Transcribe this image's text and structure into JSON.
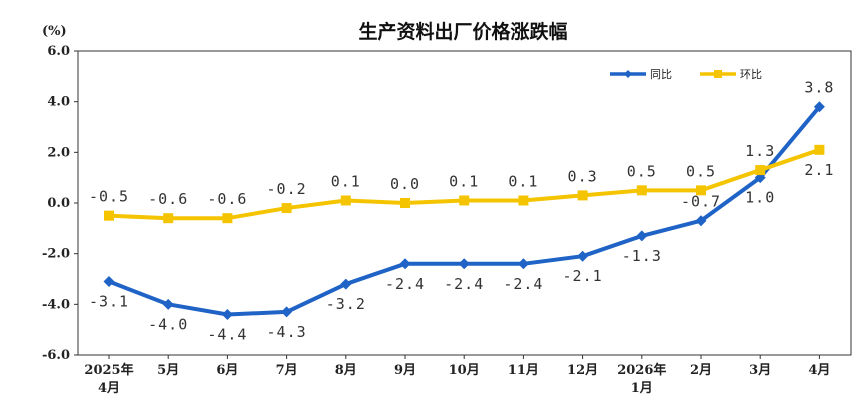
{
  "chart_data": {
    "type": "line",
    "title": "生产资料出厂价格涨跌幅",
    "unit_label": "(%)",
    "ylim": [
      -6,
      6
    ],
    "yticks": [
      "6.0",
      "4.0",
      "2.0",
      "0.0",
      "-2.0",
      "-4.0",
      "-6.0"
    ],
    "ytick_values": [
      6,
      4,
      2,
      0,
      -2,
      -4,
      -6
    ],
    "categories": [
      [
        "2025年",
        "4月"
      ],
      [
        "5月"
      ],
      [
        "6月"
      ],
      [
        "7月"
      ],
      [
        "8月"
      ],
      [
        "9月"
      ],
      [
        "10月"
      ],
      [
        "11月"
      ],
      [
        "12月"
      ],
      [
        "2026年",
        "1月"
      ],
      [
        "2月"
      ],
      [
        "3月"
      ],
      [
        "4月"
      ]
    ],
    "series": [
      {
        "name": "同比",
        "color": "#1f63c6",
        "marker": "diamond",
        "values": [
          -3.1,
          -4.0,
          -4.4,
          -4.3,
          -3.2,
          -2.4,
          -2.4,
          -2.4,
          -2.1,
          -1.3,
          -0.7,
          1.0,
          3.8
        ],
        "labels": [
          "-3.1",
          "-4.0",
          "-4.4",
          "-4.3",
          "-3.2",
          "-2.4",
          "-2.4",
          "-2.4",
          "-2.1",
          "-1.3",
          "-0.7",
          "1.0",
          "3.8"
        ],
        "label_pos": [
          "below",
          "below",
          "below",
          "below",
          "below",
          "below",
          "below",
          "below",
          "below",
          "below",
          "above",
          "below",
          "above"
        ]
      },
      {
        "name": "环比",
        "color": "#f5c400",
        "marker": "square",
        "values": [
          -0.5,
          -0.6,
          -0.6,
          -0.2,
          0.1,
          0.0,
          0.1,
          0.1,
          0.3,
          0.5,
          0.5,
          1.3,
          2.1
        ],
        "labels": [
          "-0.5",
          "-0.6",
          "-0.6",
          "-0.2",
          "0.1",
          "0.0",
          "0.1",
          "0.1",
          "0.3",
          "0.5",
          "0.5",
          "1.3",
          "2.1"
        ],
        "label_pos": [
          "above",
          "above",
          "above",
          "above",
          "above",
          "above",
          "above",
          "above",
          "above",
          "above",
          "above",
          "above",
          "below"
        ]
      }
    ],
    "grid": false,
    "legend_position": "top-right"
  }
}
